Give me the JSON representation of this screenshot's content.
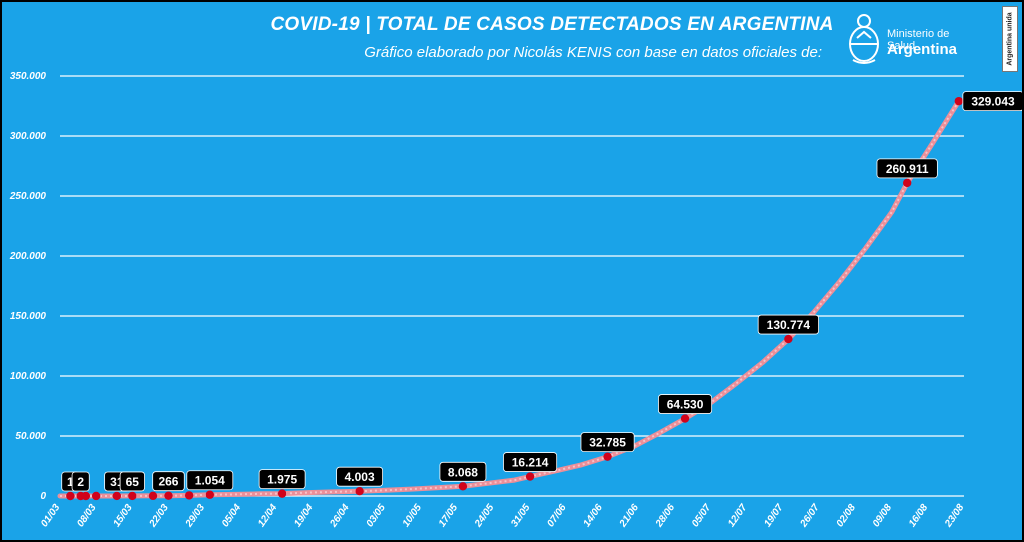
{
  "header": {
    "title": "COVID-19  |  TOTAL DE CASOS DETECTADOS EN ARGENTINA",
    "subtitle": "Gráfico elaborado por Nicolás KENIS con base en datos oficiales de:",
    "logo_line1": "Ministerio de Salud",
    "logo_line2": "Argentina",
    "badge": "Argentina unida"
  },
  "colors": {
    "background": "#1aa3e8",
    "grid": "#ffffff",
    "line": "#ec8f99",
    "marker": "#d0021b",
    "label_bg": "#000000"
  },
  "chart_data": {
    "type": "line",
    "title": "COVID-19 | TOTAL DE CASOS DETECTADOS EN ARGENTINA",
    "xlabel": "",
    "ylabel": "",
    "ylim": [
      0,
      350000
    ],
    "ytick_labels": [
      "0",
      "50.000",
      "100.000",
      "150.000",
      "200.000",
      "250.000",
      "300.000",
      "350.000"
    ],
    "ytick_values": [
      0,
      50000,
      100000,
      150000,
      200000,
      250000,
      300000,
      350000
    ],
    "x_start": "2020-03-01",
    "x_end": "2020-08-23",
    "xtick_labels": [
      "01/03",
      "08/03",
      "15/03",
      "22/03",
      "29/03",
      "05/04",
      "12/04",
      "19/04",
      "26/04",
      "03/05",
      "10/05",
      "17/05",
      "24/05",
      "31/05",
      "07/06",
      "14/06",
      "21/06",
      "28/06",
      "05/07",
      "12/07",
      "19/07",
      "26/07",
      "02/08",
      "09/08",
      "16/08",
      "23/08"
    ],
    "grid": true,
    "series": [
      {
        "values_daily": [
          [
            "2020-03-01",
            0
          ],
          [
            "2020-03-03",
            1
          ],
          [
            "2020-03-05",
            2
          ],
          [
            "2020-03-08",
            12
          ],
          [
            "2020-03-12",
            31
          ],
          [
            "2020-03-15",
            65
          ],
          [
            "2020-03-19",
            128
          ],
          [
            "2020-03-22",
            266
          ],
          [
            "2020-03-26",
            502
          ],
          [
            "2020-03-30",
            1054
          ],
          [
            "2020-04-04",
            1353
          ],
          [
            "2020-04-09",
            1795
          ],
          [
            "2020-04-13",
            1975
          ],
          [
            "2020-04-18",
            2839
          ],
          [
            "2020-04-23",
            3435
          ],
          [
            "2020-04-28",
            4003
          ],
          [
            "2020-05-03",
            4783
          ],
          [
            "2020-05-08",
            5776
          ],
          [
            "2020-05-13",
            6879
          ],
          [
            "2020-05-18",
            8068
          ],
          [
            "2020-05-23",
            10649
          ],
          [
            "2020-05-28",
            13228
          ],
          [
            "2020-05-31",
            16214
          ],
          [
            "2020-06-05",
            21037
          ],
          [
            "2020-06-10",
            25987
          ],
          [
            "2020-06-15",
            32785
          ],
          [
            "2020-06-20",
            41204
          ],
          [
            "2020-06-25",
            52457
          ],
          [
            "2020-06-30",
            64530
          ],
          [
            "2020-07-05",
            77815
          ],
          [
            "2020-07-10",
            94060
          ],
          [
            "2020-07-15",
            111160
          ],
          [
            "2020-07-20",
            130774
          ],
          [
            "2020-07-25",
            153520
          ],
          [
            "2020-07-30",
            178996
          ],
          [
            "2020-08-04",
            206743
          ],
          [
            "2020-08-09",
            236524
          ],
          [
            "2020-08-12",
            260911
          ],
          [
            "2020-08-17",
            294569
          ],
          [
            "2020-08-22",
            329043
          ]
        ]
      }
    ],
    "data_labels": [
      {
        "date": "2020-03-03",
        "value": 1,
        "text": "1"
      },
      {
        "date": "2020-03-05",
        "value": 2,
        "text": "2"
      },
      {
        "date": "2020-03-12",
        "value": 31,
        "text": "31"
      },
      {
        "date": "2020-03-15",
        "value": 65,
        "text": "65"
      },
      {
        "date": "2020-03-22",
        "value": 266,
        "text": "266"
      },
      {
        "date": "2020-03-30",
        "value": 1054,
        "text": "1.054"
      },
      {
        "date": "2020-04-13",
        "value": 1975,
        "text": "1.975"
      },
      {
        "date": "2020-04-28",
        "value": 4003,
        "text": "4.003"
      },
      {
        "date": "2020-05-18",
        "value": 8068,
        "text": "8.068"
      },
      {
        "date": "2020-05-31",
        "value": 16214,
        "text": "16.214"
      },
      {
        "date": "2020-06-15",
        "value": 32785,
        "text": "32.785"
      },
      {
        "date": "2020-06-30",
        "value": 64530,
        "text": "64.530"
      },
      {
        "date": "2020-07-20",
        "value": 130774,
        "text": "130.774"
      },
      {
        "date": "2020-08-12",
        "value": 260911,
        "text": "260.911"
      },
      {
        "date": "2020-08-22",
        "value": 329043,
        "text": "329.043"
      }
    ],
    "extra_markers": [
      {
        "date": "2020-03-06",
        "value": 2
      },
      {
        "date": "2020-03-08",
        "value": 12
      },
      {
        "date": "2020-03-19",
        "value": 128
      },
      {
        "date": "2020-03-26",
        "value": 502
      }
    ]
  }
}
